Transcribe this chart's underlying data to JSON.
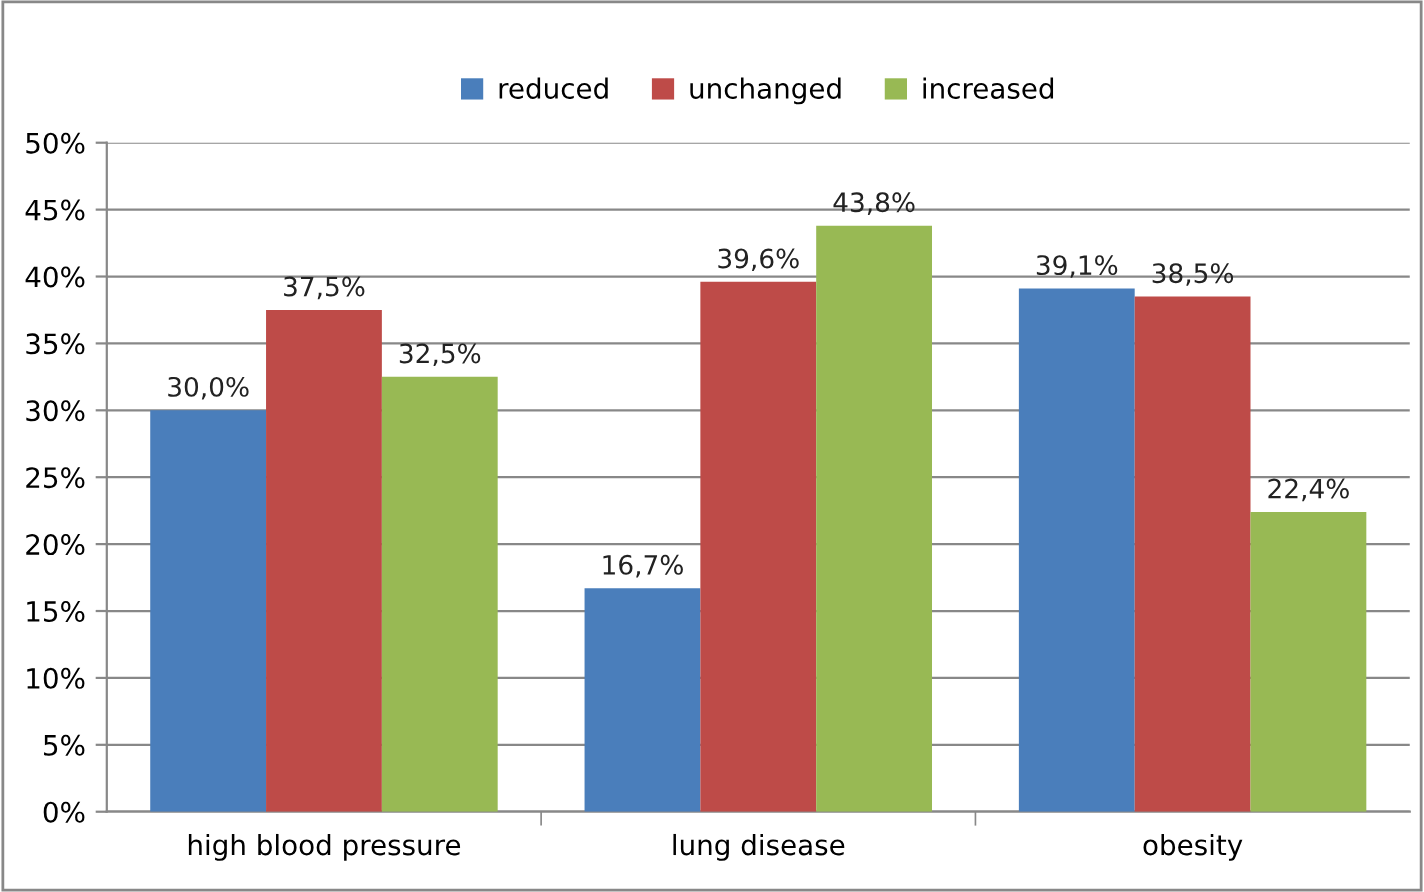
{
  "chart_data": {
    "type": "bar",
    "categories": [
      "high blood pressure",
      "lung disease",
      "obesity"
    ],
    "series": [
      {
        "name": "reduced",
        "color": "#4a7ebb",
        "values": [
          30.0,
          16.7,
          39.1
        ],
        "value_labels": [
          "30,0%",
          "16,7%",
          "39,1%"
        ]
      },
      {
        "name": "unchanged",
        "color": "#be4b48",
        "values": [
          37.5,
          39.6,
          38.5
        ],
        "value_labels": [
          "37,5%",
          "39,6%",
          "38,5%"
        ]
      },
      {
        "name": "increased",
        "color": "#98b954",
        "values": [
          32.5,
          43.8,
          22.4
        ],
        "value_labels": [
          "32,5%",
          "43,8%",
          "22,4%"
        ]
      }
    ],
    "ylim": [
      0,
      50
    ],
    "yticks": [
      {
        "value": 0,
        "label": "0%"
      },
      {
        "value": 5,
        "label": "5%"
      },
      {
        "value": 10,
        "label": "10%"
      },
      {
        "value": 15,
        "label": "15%"
      },
      {
        "value": 20,
        "label": "20%"
      },
      {
        "value": 25,
        "label": "25%"
      },
      {
        "value": 30,
        "label": "30%"
      },
      {
        "value": 35,
        "label": "35%"
      },
      {
        "value": 40,
        "label": "40%"
      },
      {
        "value": 45,
        "label": "45%"
      },
      {
        "value": 50,
        "label": "50%"
      }
    ],
    "grid": "y",
    "legend": "top"
  }
}
